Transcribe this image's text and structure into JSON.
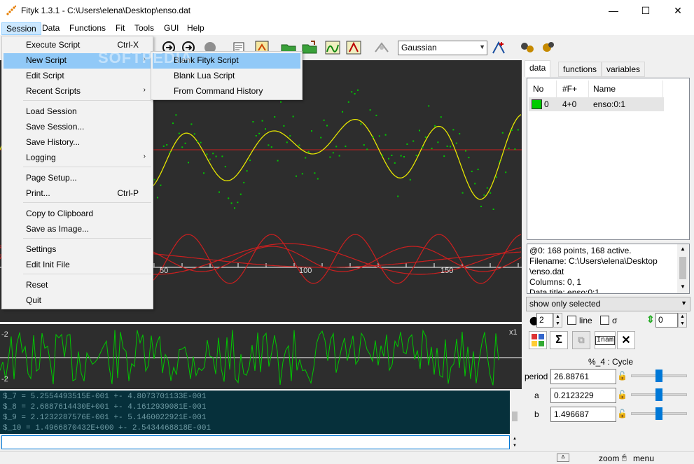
{
  "window": {
    "title": "Fityk 1.3.1 - C:\\Users\\elena\\Desktop\\enso.dat",
    "minimize": "—",
    "maximize": "☐",
    "close": "✕"
  },
  "menu": {
    "items": [
      "Session",
      "Data",
      "Functions",
      "Fit",
      "Tools",
      "GUI",
      "Help"
    ]
  },
  "toolbar": {
    "function_type": "Gaussian"
  },
  "session_menu": {
    "items": [
      {
        "label": "Execute Script",
        "shortcut": "Ctrl-X"
      },
      {
        "label": "New Script",
        "submenu": true
      },
      {
        "label": "Edit Script"
      },
      {
        "label": "Recent Scripts",
        "submenu": true
      },
      {
        "label": "Load Session"
      },
      {
        "label": "Save Session..."
      },
      {
        "label": "Save History..."
      },
      {
        "label": "Logging",
        "submenu": true
      },
      {
        "label": "Page Setup..."
      },
      {
        "label": "Print...",
        "shortcut": "Ctrl-P"
      },
      {
        "label": "Copy to Clipboard"
      },
      {
        "label": "Save as Image..."
      },
      {
        "label": "Settings"
      },
      {
        "label": "Edit Init File"
      },
      {
        "label": "Reset"
      },
      {
        "label": "Quit"
      }
    ],
    "submenu_arrow": "›"
  },
  "new_script_submenu": {
    "items": [
      "Blank Fityk Script",
      "Blank Lua Script",
      "From Command History"
    ]
  },
  "watermark": "SOFTPEDIA",
  "plot": {
    "xticks": [
      "50",
      "100",
      "150"
    ],
    "resid_labels": {
      "top": "-2",
      "bottom": "-2",
      "scale": "x1"
    }
  },
  "output": {
    "lines": [
      "$_7 = 5.2554493515E-001 +- 4.8073701133E-001",
      "$_8 = 2.6887614430E+001 +- 4.1612939081E-001",
      "$_9 = 2.1232287576E-001 +- 5.1460022921E-001",
      "$_10 = 1.4966870432E+000 +- 2.5434468818E-001"
    ]
  },
  "sidebar": {
    "tabs": [
      "data",
      "functions",
      "variables"
    ],
    "data_columns": [
      "No",
      "#F+",
      "Name"
    ],
    "data_rows": [
      {
        "no": "0",
        "fplus": "4+0",
        "name": "enso:0:1",
        "color": "#00cc00"
      }
    ],
    "info_lines": [
      "@0: 168 points, 168 active.",
      "Filename: C:\\Users\\elena\\Desktop",
      "\\enso.dat",
      "Columns: 0, 1",
      "Data title: enso:0:1"
    ],
    "show_select": "show only selected",
    "point_size": "2",
    "line_label": "line",
    "sigma_label": "σ",
    "offset_value": "0",
    "function_title": "%_4 : Cycle",
    "params": [
      {
        "name": "period",
        "value": "26.88761",
        "slider": 0.5
      },
      {
        "name": "a",
        "value": "0.2123229",
        "slider": 0.5
      },
      {
        "name": "b",
        "value": "1.496687",
        "slider": 0.5
      }
    ]
  },
  "status": {
    "zoom": "zoom",
    "menu": "menu"
  },
  "colors": {
    "yellow_curve": "#e6e600",
    "red_curve": "#cc1f1f",
    "green_points": "#00c800",
    "plot_bg": "#2d2d2d",
    "menu_highlight": "#91c9f7"
  }
}
